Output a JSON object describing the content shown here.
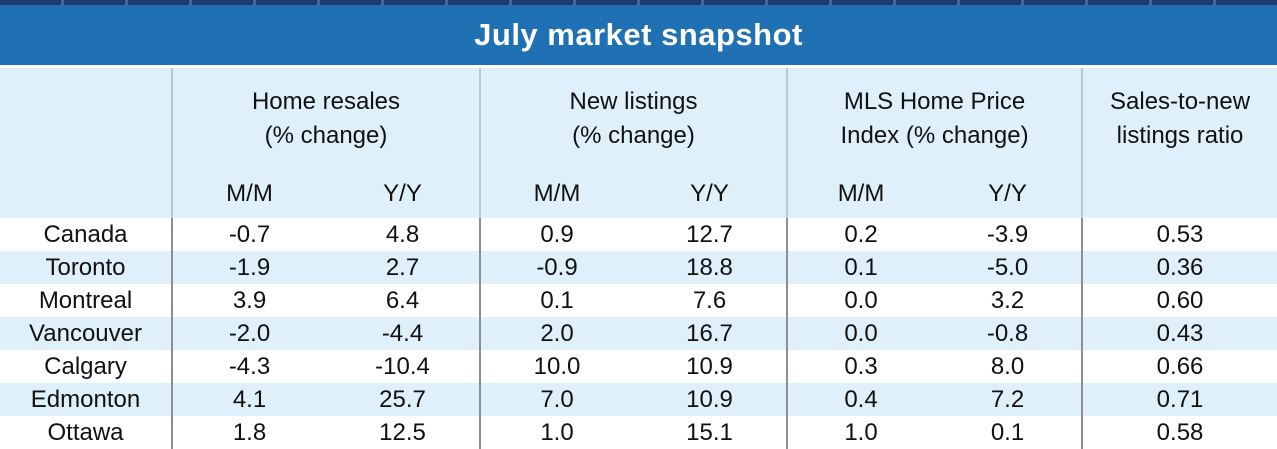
{
  "title": "July market snapshot",
  "colors": {
    "title_bar_blue": "#2070b4",
    "top_rule_navy": "#1f3c6e",
    "header_band_blue": "#dff0fa",
    "zebra_row_blue": "#dff0fa",
    "group_divider_header": "#bcc8d0",
    "group_divider_body": "#8e8e8e",
    "title_text": "#ffffff",
    "body_text": "#111111"
  },
  "chart_data": {
    "type": "table",
    "title": "July market snapshot",
    "column_groups": [
      {
        "label": "Home resales (% change)",
        "label_lines": [
          "Home resales",
          "(% change)"
        ],
        "subcolumns": [
          "M/M",
          "Y/Y"
        ]
      },
      {
        "label": "New listings (% change)",
        "label_lines": [
          "New listings",
          "(% change)"
        ],
        "subcolumns": [
          "M/M",
          "Y/Y"
        ]
      },
      {
        "label": "MLS Home Price Index (% change)",
        "label_lines": [
          "MLS Home Price",
          "Index (% change)"
        ],
        "subcolumns": [
          "M/M",
          "Y/Y"
        ]
      },
      {
        "label": "Sales-to-new listings ratio",
        "label_lines": [
          "Sales-to-new",
          "listings ratio"
        ],
        "subcolumns": []
      }
    ],
    "rows": [
      {
        "label": "Canada",
        "values": [
          "-0.7",
          "4.8",
          "0.9",
          "12.7",
          "0.2",
          "-3.9",
          "0.53"
        ]
      },
      {
        "label": "Toronto",
        "values": [
          "-1.9",
          "2.7",
          "-0.9",
          "18.8",
          "0.1",
          "-5.0",
          "0.36"
        ]
      },
      {
        "label": "Montreal",
        "values": [
          "3.9",
          "6.4",
          "0.1",
          "7.6",
          "0.0",
          "3.2",
          "0.60"
        ]
      },
      {
        "label": "Vancouver",
        "values": [
          "-2.0",
          "-4.4",
          "2.0",
          "16.7",
          "0.0",
          "-0.8",
          "0.43"
        ]
      },
      {
        "label": "Calgary",
        "values": [
          "-4.3",
          "-10.4",
          "10.0",
          "10.9",
          "0.3",
          "8.0",
          "0.66"
        ]
      },
      {
        "label": "Edmonton",
        "values": [
          "4.1",
          "25.7",
          "7.0",
          "10.9",
          "0.4",
          "7.2",
          "0.71"
        ]
      },
      {
        "label": "Ottawa",
        "values": [
          "1.8",
          "12.5",
          "1.0",
          "15.1",
          "1.0",
          "0.1",
          "0.58"
        ]
      }
    ]
  }
}
